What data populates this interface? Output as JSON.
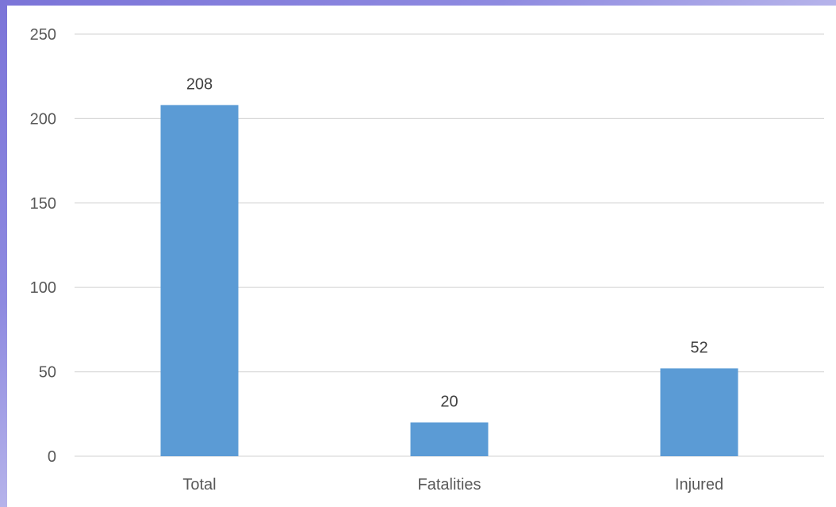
{
  "chart_data": {
    "type": "bar",
    "categories": [
      "Total",
      "Fatalities",
      "Injured"
    ],
    "values": [
      208,
      20,
      52
    ],
    "data_labels": [
      "208",
      "20",
      "52"
    ],
    "ylim": [
      0,
      250
    ],
    "yticks": [
      0,
      50,
      100,
      150,
      200,
      250
    ],
    "ytick_labels": [
      "0",
      "50",
      "100",
      "150",
      "200",
      "250"
    ],
    "grid": true,
    "bar_color": "#5b9bd5",
    "grid_color": "#d9d9d9"
  }
}
